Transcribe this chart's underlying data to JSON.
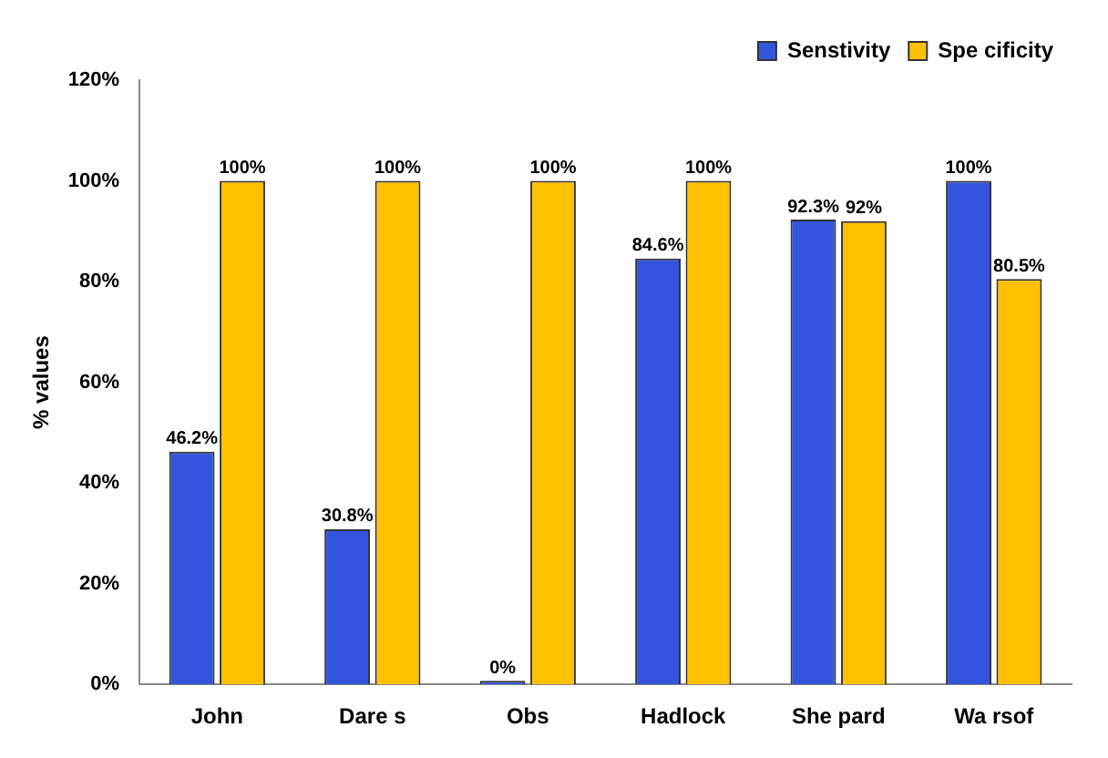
{
  "chart_data": {
    "type": "bar",
    "ylabel": "% values",
    "categories": [
      "John",
      "Dare s",
      "Obs",
      "Hadlock",
      "She pard",
      "Wa rsof"
    ],
    "series": [
      {
        "name": "Senstivity",
        "color": "#3355dd",
        "values": [
          46.2,
          30.8,
          0,
          84.6,
          92.3,
          100
        ],
        "value_labels": [
          "46.2%",
          "30.8%",
          "0%",
          "84.6%",
          "92.3%",
          "100%"
        ]
      },
      {
        "name": "Spe cificity",
        "color": "#ffc000",
        "values": [
          100,
          100,
          100,
          100,
          92,
          80.5
        ],
        "value_labels": [
          "100%",
          "100%",
          "100%",
          "100%",
          "92%",
          "80.5%"
        ]
      }
    ],
    "ylim": [
      0,
      120
    ],
    "yticks": [
      {
        "value": 0,
        "label": "0%"
      },
      {
        "value": 20,
        "label": "20%"
      },
      {
        "value": 40,
        "label": "40%"
      },
      {
        "value": 60,
        "label": "60%"
      },
      {
        "value": 80,
        "label": "80%"
      },
      {
        "value": 100,
        "label": "100%"
      },
      {
        "value": 120,
        "label": "120%"
      }
    ],
    "grid": false,
    "legend": "top right"
  }
}
